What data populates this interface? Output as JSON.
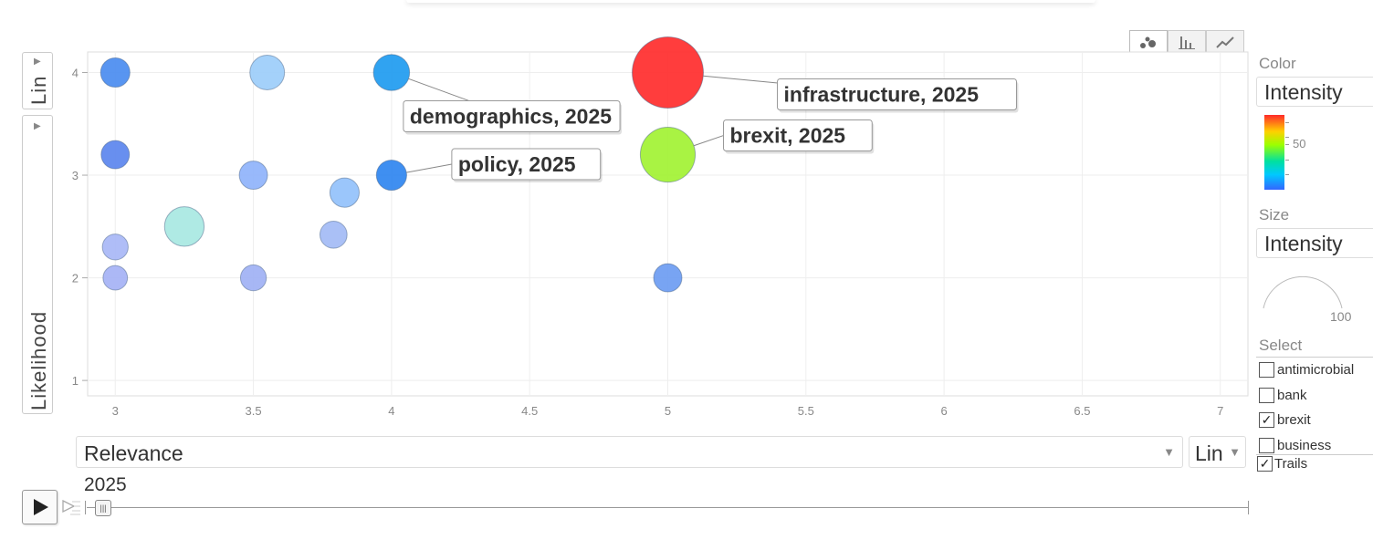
{
  "chart_data": {
    "type": "scatter",
    "subtype": "bubble",
    "xlabel": "Relevance",
    "ylabel": "Likelihood",
    "xlim": [
      2.9,
      7.1
    ],
    "ylim": [
      0.85,
      4.2
    ],
    "xticks": [
      "3",
      "3.5",
      "4",
      "4.5",
      "5",
      "5.5",
      "6",
      "6.5",
      "7"
    ],
    "yticks": [
      "1",
      "2",
      "3",
      "4"
    ],
    "grid": true,
    "points": [
      {
        "x": 3.0,
        "y": 4.0,
        "size": 8,
        "color": "#4a8cf0"
      },
      {
        "x": 3.55,
        "y": 4.0,
        "size": 14,
        "color": "#9ccdfa"
      },
      {
        "x": 4.0,
        "y": 4.0,
        "size": 16,
        "color": "#1e9bf0",
        "label": "demographics, 2025"
      },
      {
        "x": 5.0,
        "y": 4.0,
        "size": 100,
        "color": "#ff2d2d",
        "label": "infrastructure, 2025"
      },
      {
        "x": 3.0,
        "y": 3.2,
        "size": 7,
        "color": "#5b86ee"
      },
      {
        "x": 3.5,
        "y": 3.0,
        "size": 7,
        "color": "#8fb3fb"
      },
      {
        "x": 3.83,
        "y": 2.83,
        "size": 8,
        "color": "#93c1fb"
      },
      {
        "x": 4.0,
        "y": 3.0,
        "size": 9,
        "color": "#2f86f0",
        "label": "policy, 2025"
      },
      {
        "x": 5.0,
        "y": 3.2,
        "size": 52,
        "color": "#a2f233",
        "label": "brexit, 2025"
      },
      {
        "x": 3.25,
        "y": 2.5,
        "size": 21,
        "color": "#a8e8e2"
      },
      {
        "x": 3.0,
        "y": 2.3,
        "size": 5,
        "color": "#a8b7f6"
      },
      {
        "x": 3.79,
        "y": 2.42,
        "size": 6,
        "color": "#a3bbf5"
      },
      {
        "x": 3.0,
        "y": 2.0,
        "size": 4,
        "color": "#a5b2f5"
      },
      {
        "x": 3.5,
        "y": 2.0,
        "size": 5,
        "color": "#9fb1f4"
      },
      {
        "x": 5.0,
        "y": 2.0,
        "size": 7,
        "color": "#6d9cf2"
      }
    ]
  },
  "controls": {
    "y_scale": "Lin",
    "y_variable": "Likelihood",
    "x_variable": "Relevance",
    "x_scale": "Lin",
    "year": "2025",
    "color_title": "Color",
    "color_value": "Intensity",
    "color_tick": "50",
    "size_title": "Size",
    "size_value": "Intensity",
    "size_max": "100",
    "select_title": "Select",
    "select_items": [
      {
        "label": "antimicrobial",
        "checked": false
      },
      {
        "label": "bank",
        "checked": false
      },
      {
        "label": "brexit",
        "checked": true
      },
      {
        "label": "business",
        "checked": false
      }
    ],
    "trails_label": "Trails",
    "trails_checked": true
  },
  "icons": {
    "tab_bubble": "bubble-chart-icon",
    "tab_bar": "bar-chart-icon",
    "tab_line": "line-chart-icon",
    "play": "play-icon",
    "speed": "speed-icon"
  }
}
